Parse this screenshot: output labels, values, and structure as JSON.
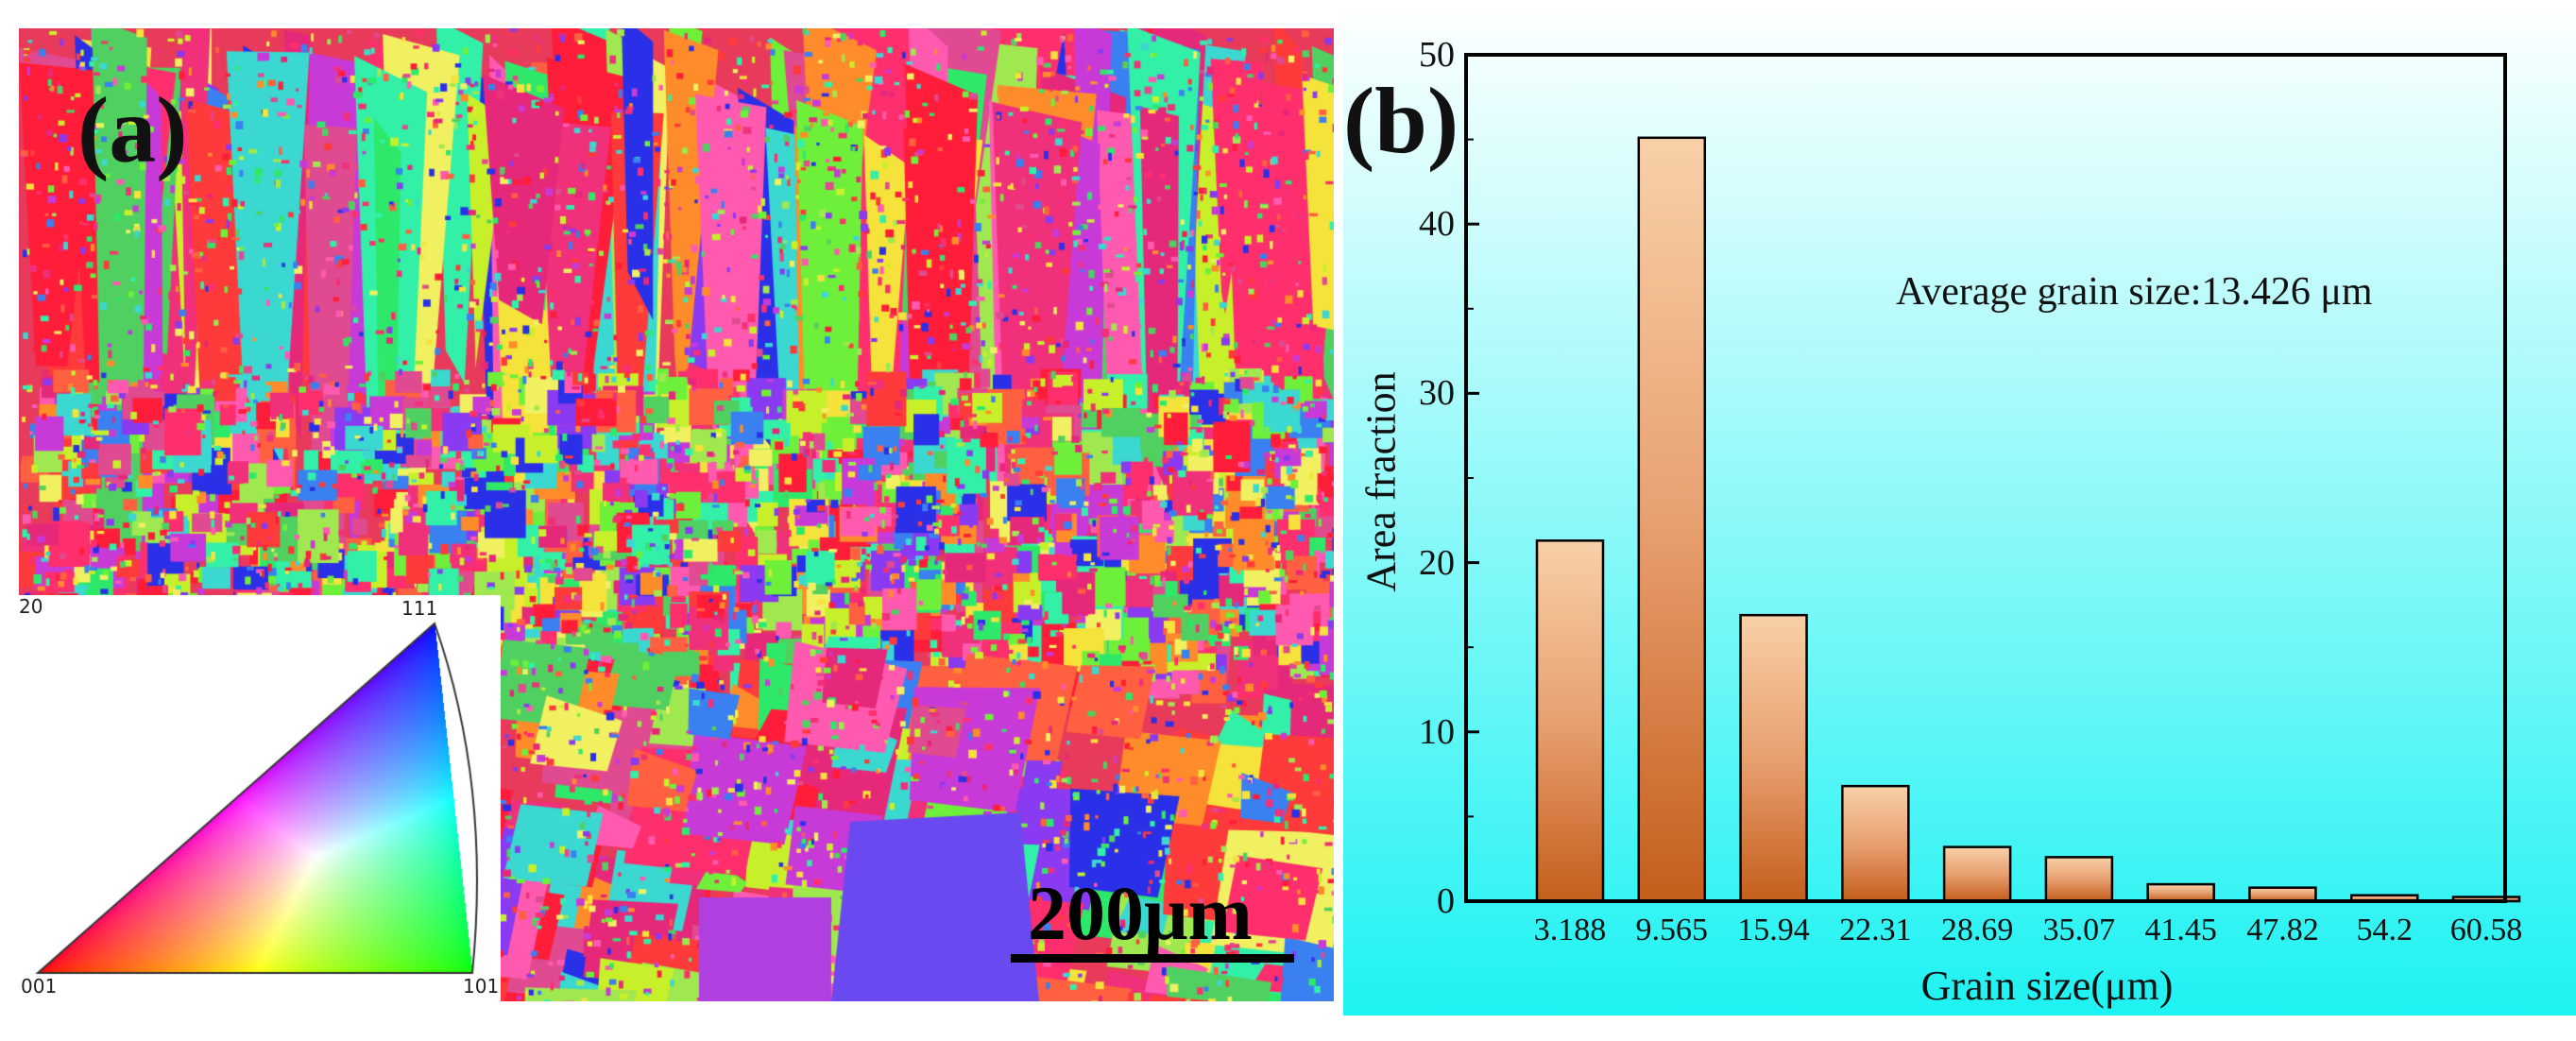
{
  "panel_a": {
    "label": "(a)",
    "scale_bar_text": "200μm",
    "ipf_key_labels": {
      "corner_001": "001",
      "corner_101": "101",
      "corner_111": "111",
      "edge": "20"
    }
  },
  "panel_b": {
    "label": "(b)"
  },
  "chart_data": {
    "type": "bar",
    "title": "",
    "xlabel": "Grain size(μm)",
    "ylabel": "Area fraction",
    "categories": [
      "3.188",
      "9.565",
      "15.94",
      "22.31",
      "28.69",
      "35.07",
      "41.45",
      "47.82",
      "54.2",
      "60.58"
    ],
    "values": [
      21.3,
      45.1,
      16.9,
      6.8,
      3.2,
      2.6,
      1.0,
      0.8,
      0.35,
      0.25
    ],
    "ylim": [
      0,
      50
    ],
    "yticks": [
      0,
      10,
      20,
      30,
      40,
      50
    ],
    "annotation": "Average grain size:13.426 μm",
    "colors": {
      "bar_top": "#f8d0a8",
      "bar_bottom": "#c45e1c",
      "bg_top": "#ffffff",
      "bg_bottom": "#1ef2f2",
      "axis": "#000000"
    }
  }
}
